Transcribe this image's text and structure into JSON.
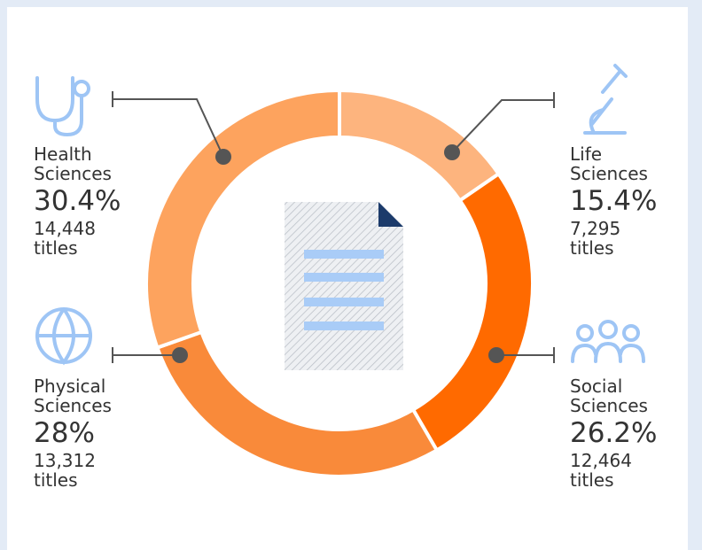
{
  "chart_data": {
    "type": "donut",
    "categories": [
      "Life Sciences",
      "Social Sciences",
      "Physical Sciences",
      "Health Sciences"
    ],
    "values": [
      15.4,
      26.2,
      28,
      30.4
    ],
    "value_labels": [
      "15.4%",
      "26.2%",
      "28%",
      "30.4%"
    ],
    "counts": [
      7295,
      12464,
      13312,
      14448
    ],
    "count_labels": [
      "7,295",
      "12,464",
      "13,312",
      "14,448"
    ],
    "count_unit": "titles",
    "colors": [
      "#fdb47e",
      "#ff6a00",
      "#f98a3a",
      "#fda35e"
    ]
  }
}
